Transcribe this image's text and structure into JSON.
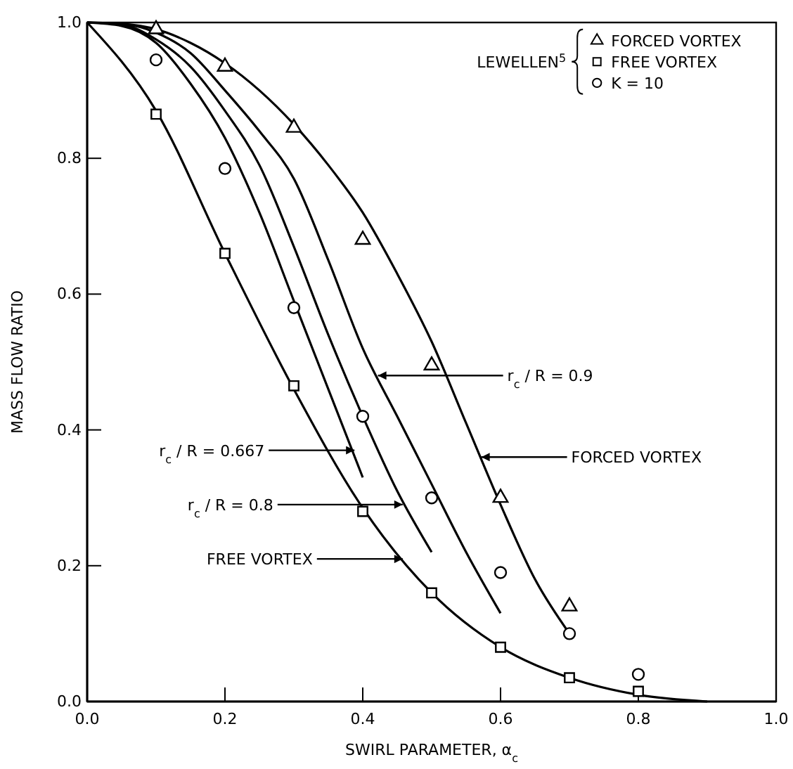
{
  "chart_data": {
    "type": "line",
    "xlabel": "SWIRL PARAMETER, α$_{c}$",
    "ylabel": "MASS FLOW RATIO",
    "xlim": [
      0,
      1.0
    ],
    "ylim": [
      0,
      1.0
    ],
    "xticks": [
      {
        "value": 0,
        "label": "0.0"
      },
      0.2,
      0.4,
      0.6,
      0.8,
      {
        "value": 1,
        "label": "1.0"
      }
    ],
    "yticks": [
      {
        "value": 0,
        "label": "0.0"
      },
      0.2,
      0.4,
      0.6,
      0.8,
      {
        "value": 1,
        "label": "1.0"
      }
    ],
    "grid": false,
    "annotations": [
      {
        "text": "FREE VORTEX",
        "x": 0.46,
        "y": 0.21
      },
      {
        "text": "r$_{c}$ / R = 0.667",
        "x": 0.39,
        "y": 0.37
      },
      {
        "text": "r$_{c}$ / R = 0.8",
        "x": 0.46,
        "y": 0.29
      },
      {
        "text": "r$_{c}$ / R = 0.9",
        "x": 0.42,
        "y": 0.48
      },
      {
        "text": "FORCED VORTEX",
        "x": 0.57,
        "y": 0.36
      }
    ],
    "legend": "top right",
    "legend_title": "LEWELLEN$^{5}$",
    "series": [
      {
        "color": "#000000",
        "marker": "none",
        "x": [
          0,
          0.1,
          0.2,
          0.3,
          0.4,
          0.5,
          0.6,
          0.7,
          0.8,
          0.9
        ],
        "values": [
          1.0,
          0.87,
          0.66,
          0.46,
          0.285,
          0.16,
          0.08,
          0.035,
          0.01,
          0.0
        ]
      },
      {
        "color": "#000000",
        "marker": "none",
        "x": [
          0,
          0.05,
          0.1,
          0.15,
          0.2,
          0.25,
          0.3,
          0.35,
          0.4
        ],
        "values": [
          1.0,
          0.995,
          0.97,
          0.91,
          0.83,
          0.72,
          0.59,
          0.46,
          0.33
        ]
      },
      {
        "type": "line",
        "color": "#000000",
        "marker": "none",
        "x": [
          0,
          0.05,
          0.1,
          0.15,
          0.2,
          0.25,
          0.3,
          0.35,
          0.4,
          0.45,
          0.5
        ],
        "values": [
          1.0,
          0.997,
          0.975,
          0.935,
          0.87,
          0.79,
          0.67,
          0.54,
          0.42,
          0.31,
          0.22
        ]
      },
      {
        "type": "line",
        "color": "#000000",
        "marker": "none",
        "x": [
          0,
          0.05,
          0.1,
          0.15,
          0.2,
          0.25,
          0.3,
          0.35,
          0.4,
          0.45,
          0.5,
          0.55,
          0.6
        ],
        "values": [
          1.0,
          0.998,
          0.985,
          0.955,
          0.9,
          0.84,
          0.77,
          0.65,
          0.52,
          0.42,
          0.32,
          0.22,
          0.13
        ]
      },
      {
        "type": "line",
        "color": "#000000",
        "marker": "none",
        "x": [
          0,
          0.05,
          0.1,
          0.15,
          0.2,
          0.25,
          0.3,
          0.35,
          0.4,
          0.45,
          0.5,
          0.55,
          0.6,
          0.65,
          0.7
        ],
        "values": [
          1.0,
          0.998,
          0.99,
          0.97,
          0.94,
          0.9,
          0.85,
          0.79,
          0.72,
          0.63,
          0.53,
          0.41,
          0.29,
          0.18,
          0.1
        ]
      },
      {
        "name": "FORCED VORTEX",
        "type": "scatter",
        "color": "#000000",
        "marker": "triangle",
        "x": [
          0.1,
          0.2,
          0.3,
          0.4,
          0.5,
          0.6,
          0.7
        ],
        "values": [
          0.99,
          0.935,
          0.845,
          0.68,
          0.495,
          0.3,
          0.14
        ]
      },
      {
        "name": "FREE VORTEX",
        "type": "scatter",
        "color": "#000000",
        "marker": "square",
        "x": [
          0.1,
          0.2,
          0.3,
          0.4,
          0.5,
          0.6,
          0.7,
          0.8
        ],
        "values": [
          0.865,
          0.66,
          0.465,
          0.28,
          0.16,
          0.08,
          0.035,
          0.015
        ]
      },
      {
        "name": "K = 10",
        "type": "scatter",
        "color": "#000000",
        "marker": "circle",
        "x": [
          0.1,
          0.2,
          0.3,
          0.4,
          0.5,
          0.6,
          0.7,
          0.8
        ],
        "values": [
          0.945,
          0.785,
          0.58,
          0.42,
          0.3,
          0.19,
          0.1,
          0.04
        ]
      }
    ]
  }
}
